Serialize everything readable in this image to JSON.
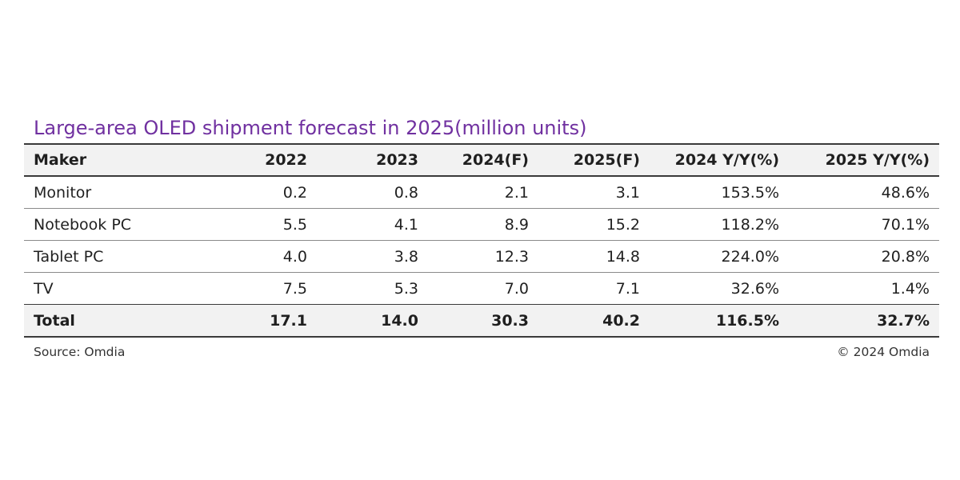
{
  "chart_data": {
    "type": "table",
    "title": "Large-area OLED shipment forecast in 2025(million units)",
    "columns": [
      "Maker",
      "2022",
      "2023",
      "2024(F)",
      "2025(F)",
      "2024 Y/Y(%)",
      "2025 Y/Y(%)"
    ],
    "rows": [
      {
        "maker": "Monitor",
        "values": [
          "0.2",
          "0.8",
          "2.1",
          "3.1",
          "153.5%",
          "48.6%"
        ]
      },
      {
        "maker": "Notebook PC",
        "values": [
          "5.5",
          "4.1",
          "8.9",
          "15.2",
          "118.2%",
          "70.1%"
        ]
      },
      {
        "maker": "Tablet PC",
        "values": [
          "4.0",
          "3.8",
          "12.3",
          "14.8",
          "224.0%",
          "20.8%"
        ]
      },
      {
        "maker": "TV",
        "values": [
          "7.5",
          "5.3",
          "7.0",
          "7.1",
          "32.6%",
          "1.4%"
        ]
      }
    ],
    "total": {
      "maker": "Total",
      "values": [
        "17.1",
        "14.0",
        "30.3",
        "40.2",
        "116.5%",
        "32.7%"
      ]
    }
  },
  "footer": {
    "source": "Source: Omdia",
    "copyright": "© 2024 Omdia"
  },
  "colors": {
    "title": "#7030a0",
    "header_bg": "#f2f2f2"
  }
}
